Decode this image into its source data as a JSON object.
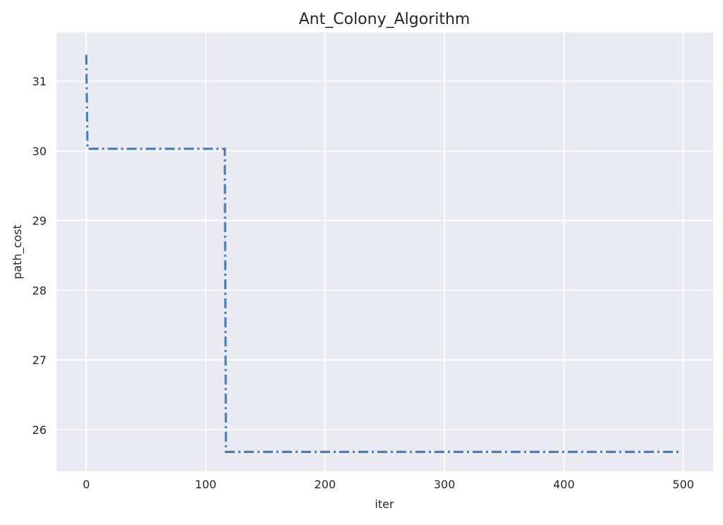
{
  "chart_data": {
    "type": "line",
    "title": "Ant_Colony_Algorithm",
    "xlabel": "iter",
    "ylabel": "path_cost",
    "xlim": [
      -25,
      525
    ],
    "ylim": [
      25.4,
      31.7
    ],
    "xticks": [
      0,
      100,
      200,
      300,
      400,
      500
    ],
    "yticks": [
      26,
      27,
      28,
      29,
      30,
      31
    ],
    "grid": true,
    "legend": "none",
    "line_style": "dashdot",
    "colors": {
      "line": "#4a7fb5",
      "plot_bg": "#eaeaf2",
      "grid": "#ffffff"
    },
    "series": [
      {
        "x": [
          0,
          1,
          2,
          116,
          117,
          118,
          499
        ],
        "y": [
          31.38,
          30.03,
          30.03,
          30.03,
          25.68,
          25.68,
          25.68
        ]
      }
    ]
  }
}
